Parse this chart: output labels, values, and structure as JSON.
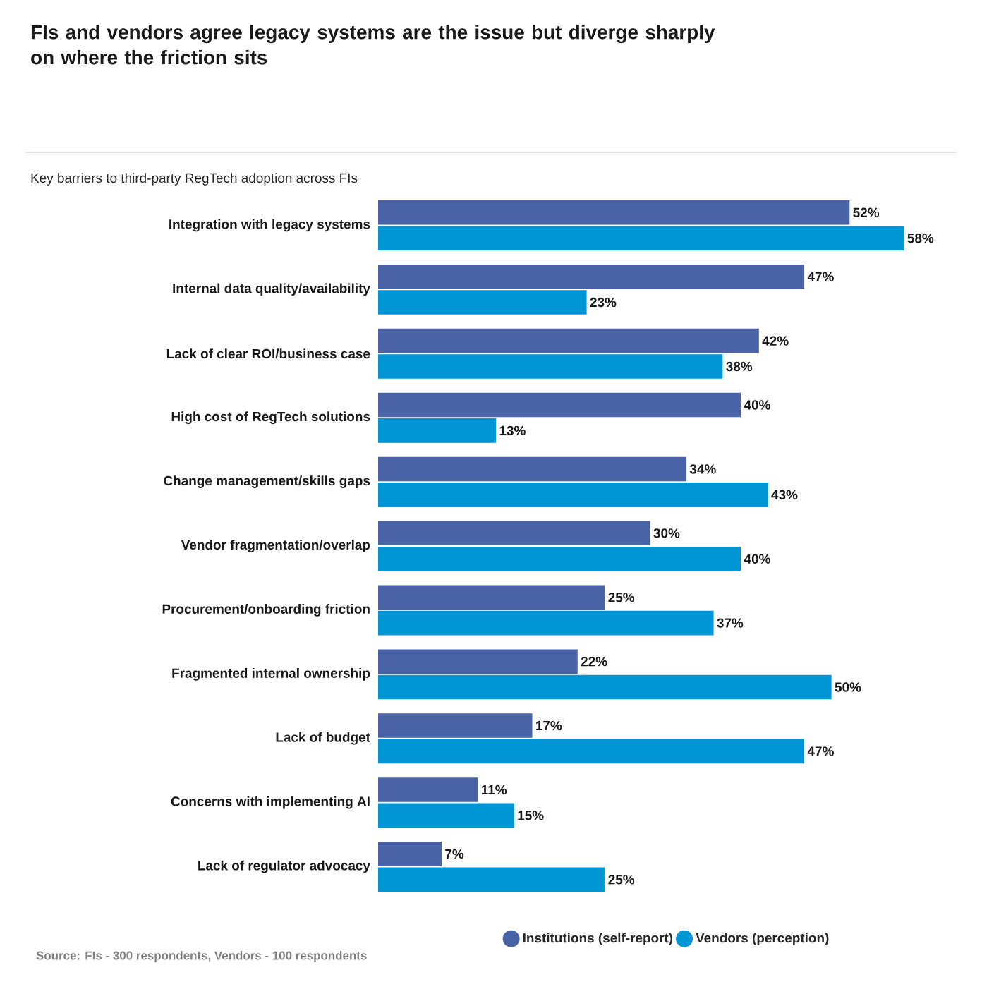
{
  "chart_data": {
    "type": "bar",
    "orientation": "horizontal",
    "title": "FIs and vendors agree legacy systems are the issue but diverge sharply on where the friction sits",
    "subtitle": "Key barriers to third-party RegTech adoption across FIs",
    "categories": [
      "Integration with legacy systems",
      "Internal data quality/availability",
      "Lack of clear ROI/business case",
      "High cost of RegTech solutions",
      "Change management/skills gaps",
      "Vendor fragmentation/overlap",
      "Procurement/onboarding friction",
      "Fragmented internal ownership",
      "Lack of budget",
      "Concerns with implementing AI",
      "Lack of regulator advocacy"
    ],
    "series": [
      {
        "name": "Institutions (self-report)",
        "color": "#4a62a6",
        "values": [
          52,
          47,
          42,
          40,
          34,
          30,
          25,
          22,
          17,
          11,
          7
        ],
        "value_labels": [
          "52%",
          "47%",
          "42%",
          "40%",
          "34%",
          "30%",
          "25%",
          "22%",
          "17%",
          "11%",
          "7%"
        ]
      },
      {
        "name": "Vendors (perception)",
        "color": "#0096d6",
        "values": [
          58,
          23,
          38,
          13,
          43,
          40,
          37,
          50,
          47,
          15,
          25
        ],
        "value_labels": [
          "58%",
          "23%",
          "38%",
          "13%",
          "43%",
          "40%",
          "37%",
          "50%",
          "47%",
          "15%",
          "25%"
        ]
      }
    ],
    "legend": "bottom",
    "annotations": [
      "Source: FIs - 300 respondents, Vendors - 100 respondents"
    ]
  }
}
